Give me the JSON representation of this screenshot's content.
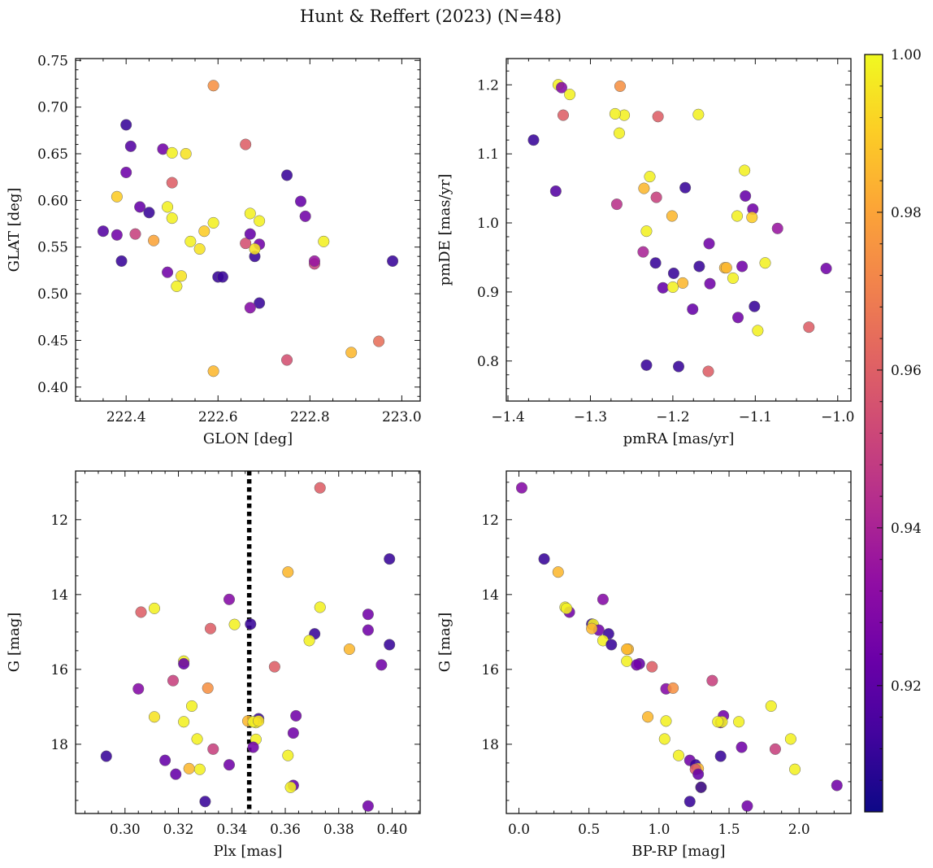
{
  "figure_title": "Hunt & Reffert (2023) (N=48)",
  "colorbar": {
    "cmap": "plasma",
    "range": [
      0.904,
      1.0
    ],
    "ticks": [
      0.92,
      0.94,
      0.96,
      0.98,
      1.0
    ],
    "tick_labels": [
      "0.92",
      "0.94",
      "0.96",
      "0.98",
      "1.00"
    ]
  },
  "chart_data": [
    {
      "type": "scatter",
      "panel": "top-left",
      "title": "",
      "xlabel": "GLON [deg]",
      "ylabel": "GLAT [deg]",
      "xlim": [
        222.29,
        223.04
      ],
      "ylim": [
        0.385,
        0.752
      ],
      "xticks": [
        222.4,
        222.6,
        222.8,
        223.0
      ],
      "xtick_labels": [
        "222.4",
        "222.6",
        "222.8",
        "223.0"
      ],
      "yticks": [
        0.4,
        0.45,
        0.5,
        0.55,
        0.6,
        0.65,
        0.7,
        0.75
      ],
      "ytick_labels": [
        "0.40",
        "0.45",
        "0.50",
        "0.55",
        "0.60",
        "0.65",
        "0.70",
        "0.75"
      ],
      "x": [
        222.4,
        222.41,
        222.48,
        222.5,
        222.53,
        222.4,
        222.5,
        222.38,
        222.43,
        222.49,
        222.45,
        222.42,
        222.46,
        222.35,
        222.38,
        222.39,
        222.5,
        222.52,
        222.51,
        222.54,
        222.56,
        222.57,
        222.59,
        222.6,
        222.59,
        222.61,
        222.66,
        222.66,
        222.67,
        222.67,
        222.68,
        222.69,
        222.69,
        222.68,
        222.69,
        222.67,
        222.75,
        222.78,
        222.79,
        222.81,
        222.81,
        222.83,
        222.75,
        222.89,
        222.95,
        222.98,
        222.59,
        222.49
      ],
      "y": [
        0.681,
        0.658,
        0.655,
        0.651,
        0.65,
        0.63,
        0.619,
        0.604,
        0.593,
        0.593,
        0.587,
        0.564,
        0.557,
        0.567,
        0.563,
        0.535,
        0.581,
        0.519,
        0.508,
        0.556,
        0.548,
        0.567,
        0.576,
        0.518,
        0.723,
        0.518,
        0.66,
        0.554,
        0.586,
        0.564,
        0.54,
        0.578,
        0.553,
        0.548,
        0.49,
        0.485,
        0.627,
        0.599,
        0.583,
        0.532,
        0.535,
        0.556,
        0.429,
        0.437,
        0.449,
        0.535,
        0.417,
        0.523
      ],
      "color_values": [
        0.912,
        0.918,
        0.925,
        0.998,
        0.995,
        0.924,
        0.96,
        0.99,
        0.922,
        0.998,
        0.912,
        0.95,
        0.98,
        0.918,
        0.925,
        0.912,
        0.998,
        0.995,
        0.998,
        0.998,
        0.995,
        0.99,
        0.998,
        0.912,
        0.975,
        0.912,
        0.96,
        0.955,
        0.998,
        0.922,
        0.912,
        0.998,
        0.925,
        0.995,
        0.912,
        0.93,
        0.912,
        0.922,
        0.925,
        0.95,
        0.935,
        0.998,
        0.955,
        0.985,
        0.965,
        0.912,
        0.985,
        0.925
      ]
    },
    {
      "type": "scatter",
      "panel": "top-right",
      "title": "",
      "xlabel": "pmRA [mas/yr]",
      "ylabel": "pmDE [mas/yr]",
      "xlim": [
        -1.402,
        -0.984
      ],
      "ylim": [
        0.742,
        1.238
      ],
      "xticks": [
        -1.4,
        -1.3,
        -1.2,
        -1.1,
        -1.0
      ],
      "xtick_labels": [
        "−1.4",
        "−1.3",
        "−1.2",
        "−1.1",
        "−1.0"
      ],
      "yticks": [
        0.8,
        0.9,
        1.0,
        1.1,
        1.2
      ],
      "ytick_labels": [
        "0.8",
        "0.9",
        "1.0",
        "1.1",
        "1.2"
      ],
      "x": [
        -1.339,
        -1.335,
        -1.333,
        -1.325,
        -1.369,
        -1.342,
        -1.264,
        -1.259,
        -1.27,
        -1.265,
        -1.218,
        -1.169,
        -1.228,
        -1.235,
        -1.232,
        -1.185,
        -1.22,
        -1.268,
        -1.201,
        -1.113,
        -1.122,
        -1.103,
        -1.112,
        -1.104,
        -1.073,
        -1.014,
        -1.236,
        -1.221,
        -1.156,
        -1.212,
        -1.199,
        -1.168,
        -1.137,
        -1.127,
        -1.116,
        -1.088,
        -1.188,
        -1.2,
        -1.155,
        -1.176,
        -1.101,
        -1.121,
        -1.097,
        -1.035,
        -1.232,
        -1.193,
        -1.157,
        -1.135
      ],
      "y": [
        1.2,
        1.196,
        1.156,
        1.186,
        1.12,
        1.046,
        1.198,
        1.156,
        1.158,
        1.13,
        1.154,
        1.157,
        1.067,
        1.05,
        0.988,
        1.051,
        1.037,
        1.027,
        1.01,
        1.076,
        1.01,
        1.02,
        1.039,
        1.008,
        0.992,
        0.934,
        0.958,
        0.942,
        0.97,
        0.906,
        0.927,
        0.937,
        0.935,
        0.92,
        0.937,
        0.942,
        0.913,
        0.907,
        0.912,
        0.875,
        0.879,
        0.863,
        0.844,
        0.849,
        0.794,
        0.792,
        0.785,
        0.935
      ],
      "color_values": [
        0.998,
        0.93,
        0.96,
        0.998,
        0.912,
        0.918,
        0.975,
        0.998,
        0.998,
        0.998,
        0.96,
        0.998,
        0.998,
        0.985,
        0.998,
        0.912,
        0.95,
        0.945,
        0.985,
        0.998,
        0.998,
        0.925,
        0.922,
        0.99,
        0.935,
        0.925,
        0.94,
        0.912,
        0.925,
        0.922,
        0.912,
        0.912,
        0.985,
        0.998,
        0.925,
        0.998,
        0.985,
        0.998,
        0.925,
        0.922,
        0.912,
        0.925,
        0.998,
        0.96,
        0.912,
        0.912,
        0.96,
        0.985
      ]
    },
    {
      "type": "scatter",
      "panel": "bottom-left",
      "title": "",
      "xlabel": "Plx [mas]",
      "ylabel": "G [mag]",
      "xlim": [
        0.2815,
        0.4105
      ],
      "ylim": [
        19.85,
        10.7
      ],
      "y_inverted": true,
      "vertical_line": {
        "x": 0.3465,
        "style": "dotted",
        "color": "#000000"
      },
      "xticks": [
        0.3,
        0.32,
        0.34,
        0.36,
        0.38,
        0.4
      ],
      "xtick_labels": [
        "0.30",
        "0.32",
        "0.34",
        "0.36",
        "0.38",
        "0.40"
      ],
      "yticks": [
        12,
        14,
        16,
        18
      ],
      "ytick_labels": [
        "12",
        "14",
        "16",
        "18"
      ],
      "x": [
        0.373,
        0.399,
        0.361,
        0.306,
        0.311,
        0.339,
        0.373,
        0.391,
        0.341,
        0.347,
        0.332,
        0.371,
        0.391,
        0.369,
        0.384,
        0.318,
        0.322,
        0.356,
        0.396,
        0.399,
        0.305,
        0.331,
        0.322,
        0.325,
        0.311,
        0.364,
        0.346,
        0.35,
        0.349,
        0.327,
        0.363,
        0.349,
        0.348,
        0.333,
        0.315,
        0.339,
        0.361,
        0.319,
        0.324,
        0.328,
        0.363,
        0.362,
        0.33,
        0.391,
        0.293,
        0.348,
        0.322,
        0.35
      ],
      "y": [
        11.15,
        13.05,
        13.4,
        14.47,
        14.37,
        14.13,
        14.34,
        14.53,
        14.8,
        14.79,
        14.91,
        15.05,
        14.95,
        15.23,
        15.46,
        16.3,
        15.78,
        15.93,
        15.88,
        15.34,
        16.52,
        16.5,
        15.85,
        16.98,
        17.27,
        17.24,
        17.38,
        17.32,
        17.42,
        17.86,
        17.7,
        17.87,
        18.08,
        18.13,
        18.43,
        18.55,
        18.3,
        18.8,
        18.65,
        18.67,
        19.1,
        19.15,
        19.53,
        19.65,
        18.32,
        17.4,
        17.4,
        17.38
      ],
      "color_values": [
        0.96,
        0.912,
        0.985,
        0.96,
        0.998,
        0.93,
        0.998,
        0.925,
        0.998,
        0.912,
        0.96,
        0.912,
        0.925,
        0.998,
        0.985,
        0.95,
        0.998,
        0.96,
        0.925,
        0.912,
        0.93,
        0.975,
        0.922,
        0.998,
        0.995,
        0.925,
        0.985,
        0.912,
        0.998,
        0.998,
        0.925,
        0.998,
        0.925,
        0.95,
        0.922,
        0.925,
        0.998,
        0.922,
        0.985,
        0.998,
        0.922,
        0.998,
        0.912,
        0.925,
        0.912,
        0.998,
        0.998,
        0.995
      ]
    },
    {
      "type": "scatter",
      "panel": "bottom-right",
      "title": "",
      "xlabel": "BP-RP [mag]",
      "ylabel": "G [mag]",
      "xlim": [
        -0.09,
        2.37
      ],
      "ylim": [
        19.85,
        10.7
      ],
      "y_inverted": true,
      "xticks": [
        0.0,
        0.5,
        1.0,
        1.5,
        2.0
      ],
      "xtick_labels": [
        "0.0",
        "0.5",
        "1.0",
        "1.5",
        "2.0"
      ],
      "yticks": [
        12,
        14,
        16,
        18
      ],
      "ytick_labels": [
        "12",
        "14",
        "16",
        "18"
      ],
      "x": [
        0.02,
        0.18,
        0.28,
        0.33,
        0.36,
        0.34,
        0.6,
        0.52,
        0.53,
        0.57,
        0.64,
        0.6,
        0.66,
        0.78,
        0.77,
        0.86,
        0.84,
        0.95,
        1.05,
        1.1,
        1.38,
        0.92,
        1.05,
        1.44,
        1.46,
        1.45,
        1.42,
        1.57,
        1.8,
        1.94,
        1.04,
        1.14,
        1.22,
        1.26,
        1.28,
        1.26,
        1.28,
        1.3,
        1.44,
        1.59,
        1.83,
        1.97,
        2.27,
        1.22,
        1.63,
        1.3,
        0.52,
        0.77
      ],
      "y": [
        11.15,
        13.05,
        13.4,
        14.34,
        14.47,
        14.37,
        14.13,
        14.79,
        14.8,
        14.95,
        15.05,
        15.23,
        15.34,
        15.46,
        15.78,
        15.85,
        15.88,
        15.93,
        16.52,
        16.5,
        16.3,
        17.27,
        17.38,
        17.42,
        17.24,
        17.4,
        17.4,
        17.4,
        16.98,
        17.86,
        17.86,
        18.3,
        18.43,
        18.55,
        18.65,
        18.67,
        18.8,
        19.15,
        18.32,
        18.08,
        18.13,
        18.67,
        19.1,
        19.53,
        19.65,
        19.15,
        14.91,
        15.46
      ],
      "color_values": [
        0.93,
        0.912,
        0.985,
        0.998,
        0.925,
        0.998,
        0.93,
        0.912,
        0.998,
        0.925,
        0.912,
        0.998,
        0.912,
        0.985,
        0.998,
        0.922,
        0.925,
        0.96,
        0.93,
        0.975,
        0.95,
        0.985,
        0.998,
        0.925,
        0.925,
        0.998,
        0.998,
        0.998,
        0.998,
        0.998,
        0.998,
        0.998,
        0.925,
        0.912,
        0.985,
        0.96,
        0.922,
        0.998,
        0.912,
        0.925,
        0.95,
        0.998,
        0.925,
        0.912,
        0.925,
        0.912,
        0.985,
        0.985
      ]
    }
  ]
}
